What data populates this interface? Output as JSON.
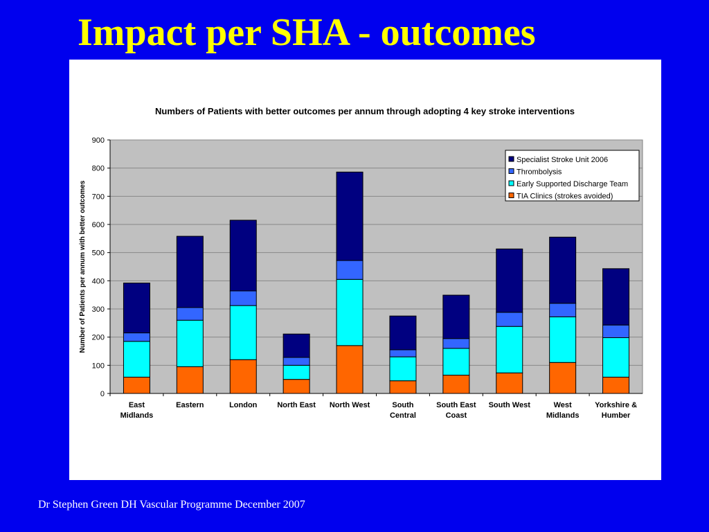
{
  "slide": {
    "title": "Impact per SHA - outcomes",
    "footer": "Dr Stephen Green DH Vascular Programme December 2007"
  },
  "colors": {
    "background": "#0000ee",
    "title": "#ffff00",
    "plot_area": "#c0c0c0",
    "gridline": "#888888",
    "specialist_stroke_unit": "#000080",
    "thrombolysis": "#3366ff",
    "early_supported_discharge": "#00ffff",
    "tia_clinics": "#ff6600"
  },
  "chart_data": {
    "type": "bar",
    "stacked": true,
    "title": "Numbers of Patients with better outcomes per annum through adopting 4 key stroke interventions",
    "xlabel": "",
    "ylabel": "Number of Patients per annum with better outcomes",
    "ylim": [
      0,
      900
    ],
    "yticks": [
      0,
      100,
      200,
      300,
      400,
      500,
      600,
      700,
      800,
      900
    ],
    "grid": true,
    "legend_position": "top-right",
    "categories": [
      [
        "East",
        "Midlands"
      ],
      [
        "Eastern"
      ],
      [
        "London"
      ],
      [
        "North East"
      ],
      [
        "North West"
      ],
      [
        "South",
        "Central"
      ],
      [
        "South East",
        "Coast"
      ],
      [
        "South West"
      ],
      [
        "West",
        "Midlands"
      ],
      [
        "Yorkshire &",
        "Humber"
      ]
    ],
    "series": [
      {
        "name": "TIA Clinics (strokes avoided)",
        "color": "#ff6600",
        "values": [
          58,
          95,
          120,
          50,
          170,
          45,
          65,
          73,
          110,
          58
        ]
      },
      {
        "name": "Early Supported Discharge Team",
        "color": "#00ffff",
        "values": [
          127,
          165,
          192,
          50,
          235,
          85,
          95,
          165,
          162,
          140
        ]
      },
      {
        "name": "Thrombolysis",
        "color": "#3366ff",
        "values": [
          30,
          45,
          52,
          28,
          67,
          25,
          35,
          50,
          48,
          45
        ]
      },
      {
        "name": "Specialist Stroke Unit 2006",
        "color": "#000080",
        "values": [
          177,
          253,
          251,
          83,
          314,
          120,
          154,
          225,
          235,
          200
        ]
      }
    ],
    "legend_order": [
      "Specialist Stroke Unit 2006",
      "Thrombolysis",
      "Early Supported Discharge Team",
      "TIA Clinics (strokes avoided)"
    ]
  }
}
